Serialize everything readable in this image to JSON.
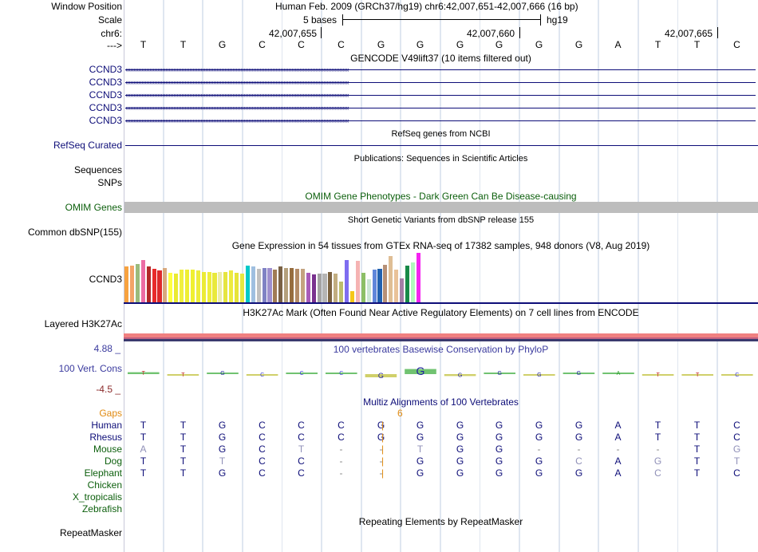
{
  "header": {
    "labels": [
      "Window Position",
      "Scale",
      "chr6:",
      "--->"
    ],
    "position_text": "Human Feb. 2009 (GRCh37/hg19)   chr6:42,007,651-42,007,666 (16 bp)",
    "scale_text": "5 bases",
    "assembly": "hg19",
    "coordinates": [
      "42,007,655",
      "42,007,660",
      "42,007,665"
    ],
    "bases": [
      "T",
      "T",
      "G",
      "C",
      "C",
      "C",
      "G",
      "G",
      "G",
      "G",
      "G",
      "G",
      "A",
      "T",
      "T",
      "C"
    ]
  },
  "tracks": {
    "gencode": {
      "title": "GENCODE V49lift37 (10 items filtered out)",
      "labels": [
        "CCND3",
        "CCND3",
        "CCND3",
        "CCND3",
        "CCND3"
      ],
      "color": "#0d0d78"
    },
    "refseq": {
      "title": "RefSeq genes from NCBI",
      "label": "RefSeq Curated"
    },
    "publications": {
      "title": "Publications: Sequences in Scientific Articles",
      "labels": [
        "Sequences",
        "SNPs"
      ]
    },
    "omim": {
      "title": "OMIM Gene Phenotypes - Dark Green Can Be Disease-causing",
      "label": "OMIM Genes",
      "color": "#0c5f0c"
    },
    "dbsnp": {
      "title": "Short Genetic Variants from dbSNP release 155",
      "label": "Common dbSNP(155)"
    },
    "gtex": {
      "title": "Gene Expression in 54 tissues from GTEx RNA-seq of 17382 samples, 948 donors (V8, Aug 2019)",
      "label": "CCND3",
      "bar_colors": [
        "#f7a23f",
        "#f3a468",
        "#9bbb7c",
        "#ec6ca5",
        "#b2282a",
        "#e82b2b",
        "#dd2a2b",
        "#d8a97e",
        "#ffff40",
        "#eaea2f",
        "#f0f040",
        "#eeee33",
        "#f0f030",
        "#eded3c",
        "#ebeb35",
        "#eeee3c",
        "#e9e93b",
        "#ececaa",
        "#e5e540",
        "#edeb40",
        "#e6e43a",
        "#e6e840",
        "#00c9c9",
        "#9fbfe0",
        "#c0c0c0",
        "#7f82c4",
        "#9e8fce",
        "#a07b55",
        "#796145",
        "#b4a07c",
        "#966d3f",
        "#b38b67",
        "#c4a380",
        "#a85bb9",
        "#7a318f",
        "#a3a3a3",
        "#b5b5b5",
        "#7b6240",
        "#c2ae80",
        "#bdbd6c",
        "#7e6df0",
        "#f5c718",
        "#f5b3b3",
        "#8cbf66",
        "#cbe7d4",
        "#5f86da",
        "#2161b0",
        "#b69077",
        "#dfbe95",
        "#e9c299",
        "#a47ea6",
        "#188a48",
        "#b1f8bd",
        "#f523f0"
      ],
      "bar_values": [
        0.72,
        0.74,
        0.78,
        0.86,
        0.72,
        0.68,
        0.64,
        0.7,
        0.6,
        0.58,
        0.66,
        0.66,
        0.66,
        0.64,
        0.62,
        0.62,
        0.6,
        0.62,
        0.62,
        0.64,
        0.6,
        0.58,
        0.74,
        0.72,
        0.68,
        0.7,
        0.7,
        0.66,
        0.72,
        0.7,
        0.7,
        0.68,
        0.68,
        0.6,
        0.56,
        0.58,
        0.58,
        0.62,
        0.58,
        0.42,
        0.86,
        0.22,
        0.84,
        0.6,
        0.46,
        0.66,
        0.68,
        0.76,
        0.94,
        0.66,
        0.48,
        0.74,
        0.8,
        1.0
      ]
    },
    "h3k27ac": {
      "title": "H3K27Ac Mark (Often Found Near Active Regulatory Elements) on 7 cell lines from ENCODE",
      "label": "Layered H3K27Ac"
    },
    "phylop": {
      "title": "100 vertebrates Basewise Conservation by PhyloP",
      "label": "100 Vert. Cons",
      "max": "4.88 _",
      "min": "-4.5 _",
      "scores": [
        0.3,
        -0.1,
        0.25,
        -0.05,
        0.1,
        0.0,
        -0.5,
        0.8,
        -0.3,
        0.2,
        -0.2,
        0.1,
        0.0,
        -0.1,
        -0.1,
        -0.15
      ]
    },
    "multiz": {
      "title": "Multiz Alignments of 100 Vertebrates",
      "gaps_label": "Gaps",
      "gap_count": "6",
      "species": [
        {
          "name": "Human",
          "seq": [
            "T",
            "T",
            "G",
            "C",
            "C",
            "C",
            "G",
            "|",
            "G",
            "G",
            "G",
            "G",
            "G",
            "A",
            "T",
            "T",
            "C"
          ]
        },
        {
          "name": "Rhesus",
          "seq": [
            "T",
            "T",
            "G",
            "C",
            "C",
            "C",
            "G",
            "|",
            "G",
            "G",
            "G",
            "G",
            "G",
            "A",
            "T",
            "T",
            "C"
          ]
        },
        {
          "name": "Mouse",
          "seq": [
            "A",
            "T",
            "G",
            "C",
            "T",
            "-",
            "-",
            "|",
            "T",
            "G",
            "G",
            "-",
            "-",
            "-",
            "-",
            "T",
            "G"
          ]
        },
        {
          "name": "Dog",
          "seq": [
            "T",
            "T",
            "T",
            "C",
            "C",
            "-",
            "-",
            "|",
            "G",
            "G",
            "G",
            "G",
            "C",
            "A",
            "G",
            "T",
            "T"
          ]
        },
        {
          "name": "Elephant",
          "seq": [
            "T",
            "T",
            "G",
            "C",
            "C",
            "-",
            "-",
            "|",
            "G",
            "G",
            "G",
            "G",
            "G",
            "A",
            "C",
            "T",
            "C"
          ]
        },
        {
          "name": "Chicken",
          "seq": []
        },
        {
          "name": "X_tropicalis",
          "seq": []
        },
        {
          "name": "Zebrafish",
          "seq": []
        }
      ]
    },
    "repeatmasker": {
      "title": "Repeating Elements by RepeatMasker",
      "label": "RepeatMasker"
    }
  },
  "colors": {
    "gencode": "#0d0d78",
    "omim": "#0c5f0c",
    "gaps": "#e08a10",
    "phylop": "#3a3a9e",
    "species_blue": "#0d0d78",
    "species_green": "#0c5f0c",
    "axis_red": "#8b2a2a"
  }
}
